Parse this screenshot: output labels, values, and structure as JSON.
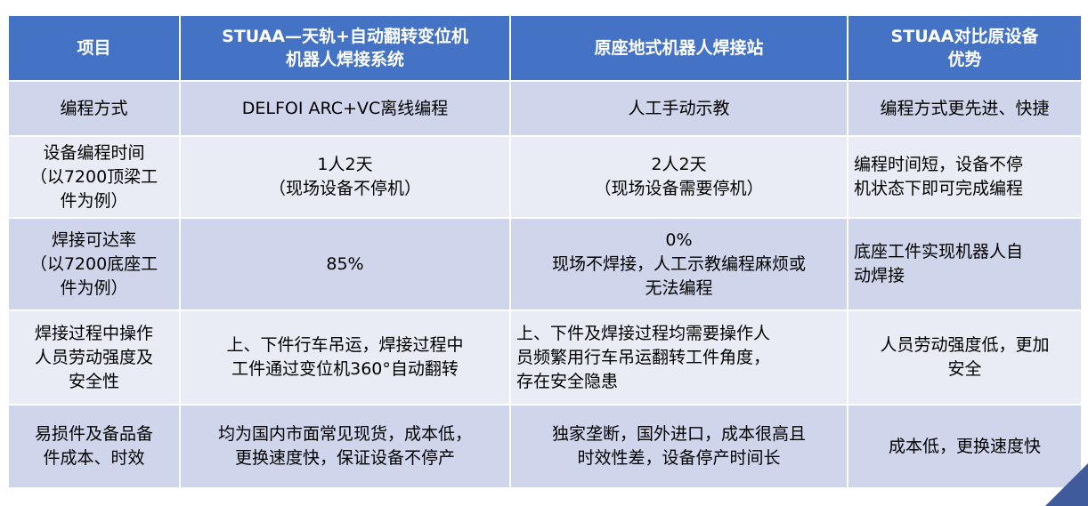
{
  "headers": [
    "项目",
    "STUAA—天轨+自动翻转变位机\n机器人焊接系统",
    "原座地式机器人焊接站",
    "STUAA对比原设备\n优势"
  ],
  "rows": [
    [
      "编程方式",
      "DELFOI ARC+VC离线编程",
      "人工手动示教",
      "编程方式更先进、快捷"
    ],
    [
      "设备编程时间\n（以7200顶梁工\n件为例）",
      "1人2天\n（现场设备不停机）",
      "2人2天\n（现场设备需要停机）",
      "编程时间短，设备不停\n机状态下即可完成编程"
    ],
    [
      "焊接可达率\n（以7200底座工\n件为例）",
      "85%",
      "0%\n现场不焊接，人工示教编程麻烦或\n无法编程",
      "底座工件实现机器人自\n动焊接"
    ],
    [
      "焊接过程中操作\n人员劳动强度及\n安全性",
      "上、下件行车吊运，焊接过程中\n工件通过变位机360°自动翻转",
      "上、下件及焊接过程均需要操作人\n员频繁用行车吊运翻转工件角度，\n存在安全隐患",
      "人员劳动强度低，更加\n安全"
    ],
    [
      "易损件及备品备\n件成本、时效",
      "均为国内市面常见现货，成本低，\n更换速度快，保证设备不停产",
      "独家垄断，国外进口，成本很高且\n时效性差，设备停产时间长",
      "成本低，更换速度快"
    ]
  ],
  "colors": {
    "header": "#4472c4",
    "row_dark": "#cfd5ea",
    "row_light": "#e9ebf5",
    "corner": "#3f5b9c"
  }
}
